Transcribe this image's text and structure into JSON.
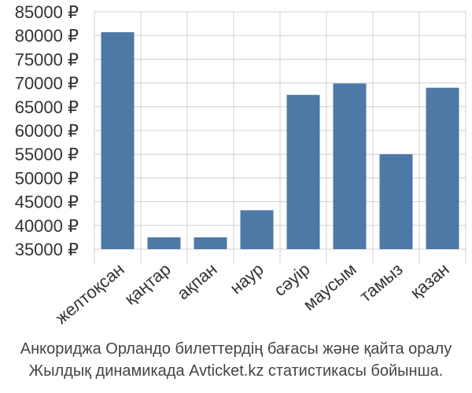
{
  "chart_data": {
    "type": "bar",
    "categories": [
      "желтоқсан",
      "қаңтар",
      "ақпан",
      "наур",
      "сәуір",
      "маусым",
      "тамыз",
      "қазан"
    ],
    "values": [
      80700,
      37500,
      37500,
      43200,
      67500,
      69900,
      55000,
      69000
    ],
    "ylim": [
      35000,
      85000
    ],
    "yticks": [
      35000,
      40000,
      45000,
      50000,
      55000,
      60000,
      65000,
      70000,
      75000,
      80000,
      85000
    ],
    "ytick_labels": [
      "35000 ₽",
      "40000 ₽",
      "45000 ₽",
      "50000 ₽",
      "55000 ₽",
      "60000 ₽",
      "65000 ₽",
      "70000 ₽",
      "75000 ₽",
      "80000 ₽",
      "85000 ₽"
    ],
    "grid": true,
    "bar_color": "#4e79a7"
  },
  "caption": {
    "line1": "Анкориджа Орландо билеттердің бағасы және қайта оралу",
    "line2": "Жылдық динамикада Avticket.kz статистикасы бойынша."
  }
}
